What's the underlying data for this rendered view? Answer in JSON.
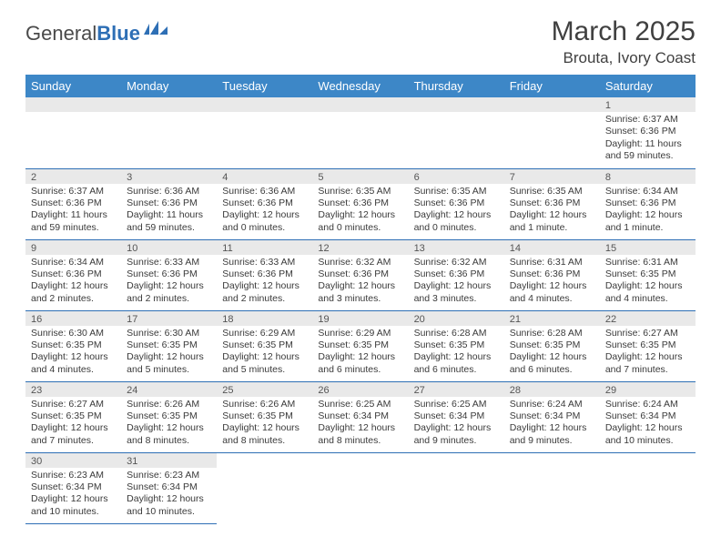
{
  "logo": {
    "general": "General",
    "blue": "Blue"
  },
  "header": {
    "month_title": "March 2025",
    "location": "Brouta, Ivory Coast"
  },
  "colors": {
    "header_bg": "#3d87c7",
    "header_text": "#ffffff",
    "daynum_bg": "#e9e9e9",
    "cell_border": "#2e6fb5",
    "text": "#3a3a3a",
    "logo_blue": "#2e6fb5"
  },
  "dayheaders": [
    "Sunday",
    "Monday",
    "Tuesday",
    "Wednesday",
    "Thursday",
    "Friday",
    "Saturday"
  ],
  "weeks": [
    [
      null,
      null,
      null,
      null,
      null,
      null,
      {
        "n": "1",
        "sr": "Sunrise: 6:37 AM",
        "ss": "Sunset: 6:36 PM",
        "dl": "Daylight: 11 hours and 59 minutes."
      }
    ],
    [
      {
        "n": "2",
        "sr": "Sunrise: 6:37 AM",
        "ss": "Sunset: 6:36 PM",
        "dl": "Daylight: 11 hours and 59 minutes."
      },
      {
        "n": "3",
        "sr": "Sunrise: 6:36 AM",
        "ss": "Sunset: 6:36 PM",
        "dl": "Daylight: 11 hours and 59 minutes."
      },
      {
        "n": "4",
        "sr": "Sunrise: 6:36 AM",
        "ss": "Sunset: 6:36 PM",
        "dl": "Daylight: 12 hours and 0 minutes."
      },
      {
        "n": "5",
        "sr": "Sunrise: 6:35 AM",
        "ss": "Sunset: 6:36 PM",
        "dl": "Daylight: 12 hours and 0 minutes."
      },
      {
        "n": "6",
        "sr": "Sunrise: 6:35 AM",
        "ss": "Sunset: 6:36 PM",
        "dl": "Daylight: 12 hours and 0 minutes."
      },
      {
        "n": "7",
        "sr": "Sunrise: 6:35 AM",
        "ss": "Sunset: 6:36 PM",
        "dl": "Daylight: 12 hours and 1 minute."
      },
      {
        "n": "8",
        "sr": "Sunrise: 6:34 AM",
        "ss": "Sunset: 6:36 PM",
        "dl": "Daylight: 12 hours and 1 minute."
      }
    ],
    [
      {
        "n": "9",
        "sr": "Sunrise: 6:34 AM",
        "ss": "Sunset: 6:36 PM",
        "dl": "Daylight: 12 hours and 2 minutes."
      },
      {
        "n": "10",
        "sr": "Sunrise: 6:33 AM",
        "ss": "Sunset: 6:36 PM",
        "dl": "Daylight: 12 hours and 2 minutes."
      },
      {
        "n": "11",
        "sr": "Sunrise: 6:33 AM",
        "ss": "Sunset: 6:36 PM",
        "dl": "Daylight: 12 hours and 2 minutes."
      },
      {
        "n": "12",
        "sr": "Sunrise: 6:32 AM",
        "ss": "Sunset: 6:36 PM",
        "dl": "Daylight: 12 hours and 3 minutes."
      },
      {
        "n": "13",
        "sr": "Sunrise: 6:32 AM",
        "ss": "Sunset: 6:36 PM",
        "dl": "Daylight: 12 hours and 3 minutes."
      },
      {
        "n": "14",
        "sr": "Sunrise: 6:31 AM",
        "ss": "Sunset: 6:36 PM",
        "dl": "Daylight: 12 hours and 4 minutes."
      },
      {
        "n": "15",
        "sr": "Sunrise: 6:31 AM",
        "ss": "Sunset: 6:35 PM",
        "dl": "Daylight: 12 hours and 4 minutes."
      }
    ],
    [
      {
        "n": "16",
        "sr": "Sunrise: 6:30 AM",
        "ss": "Sunset: 6:35 PM",
        "dl": "Daylight: 12 hours and 4 minutes."
      },
      {
        "n": "17",
        "sr": "Sunrise: 6:30 AM",
        "ss": "Sunset: 6:35 PM",
        "dl": "Daylight: 12 hours and 5 minutes."
      },
      {
        "n": "18",
        "sr": "Sunrise: 6:29 AM",
        "ss": "Sunset: 6:35 PM",
        "dl": "Daylight: 12 hours and 5 minutes."
      },
      {
        "n": "19",
        "sr": "Sunrise: 6:29 AM",
        "ss": "Sunset: 6:35 PM",
        "dl": "Daylight: 12 hours and 6 minutes."
      },
      {
        "n": "20",
        "sr": "Sunrise: 6:28 AM",
        "ss": "Sunset: 6:35 PM",
        "dl": "Daylight: 12 hours and 6 minutes."
      },
      {
        "n": "21",
        "sr": "Sunrise: 6:28 AM",
        "ss": "Sunset: 6:35 PM",
        "dl": "Daylight: 12 hours and 6 minutes."
      },
      {
        "n": "22",
        "sr": "Sunrise: 6:27 AM",
        "ss": "Sunset: 6:35 PM",
        "dl": "Daylight: 12 hours and 7 minutes."
      }
    ],
    [
      {
        "n": "23",
        "sr": "Sunrise: 6:27 AM",
        "ss": "Sunset: 6:35 PM",
        "dl": "Daylight: 12 hours and 7 minutes."
      },
      {
        "n": "24",
        "sr": "Sunrise: 6:26 AM",
        "ss": "Sunset: 6:35 PM",
        "dl": "Daylight: 12 hours and 8 minutes."
      },
      {
        "n": "25",
        "sr": "Sunrise: 6:26 AM",
        "ss": "Sunset: 6:35 PM",
        "dl": "Daylight: 12 hours and 8 minutes."
      },
      {
        "n": "26",
        "sr": "Sunrise: 6:25 AM",
        "ss": "Sunset: 6:34 PM",
        "dl": "Daylight: 12 hours and 8 minutes."
      },
      {
        "n": "27",
        "sr": "Sunrise: 6:25 AM",
        "ss": "Sunset: 6:34 PM",
        "dl": "Daylight: 12 hours and 9 minutes."
      },
      {
        "n": "28",
        "sr": "Sunrise: 6:24 AM",
        "ss": "Sunset: 6:34 PM",
        "dl": "Daylight: 12 hours and 9 minutes."
      },
      {
        "n": "29",
        "sr": "Sunrise: 6:24 AM",
        "ss": "Sunset: 6:34 PM",
        "dl": "Daylight: 12 hours and 10 minutes."
      }
    ],
    [
      {
        "n": "30",
        "sr": "Sunrise: 6:23 AM",
        "ss": "Sunset: 6:34 PM",
        "dl": "Daylight: 12 hours and 10 minutes."
      },
      {
        "n": "31",
        "sr": "Sunrise: 6:23 AM",
        "ss": "Sunset: 6:34 PM",
        "dl": "Daylight: 12 hours and 10 minutes."
      },
      null,
      null,
      null,
      null,
      null
    ]
  ]
}
